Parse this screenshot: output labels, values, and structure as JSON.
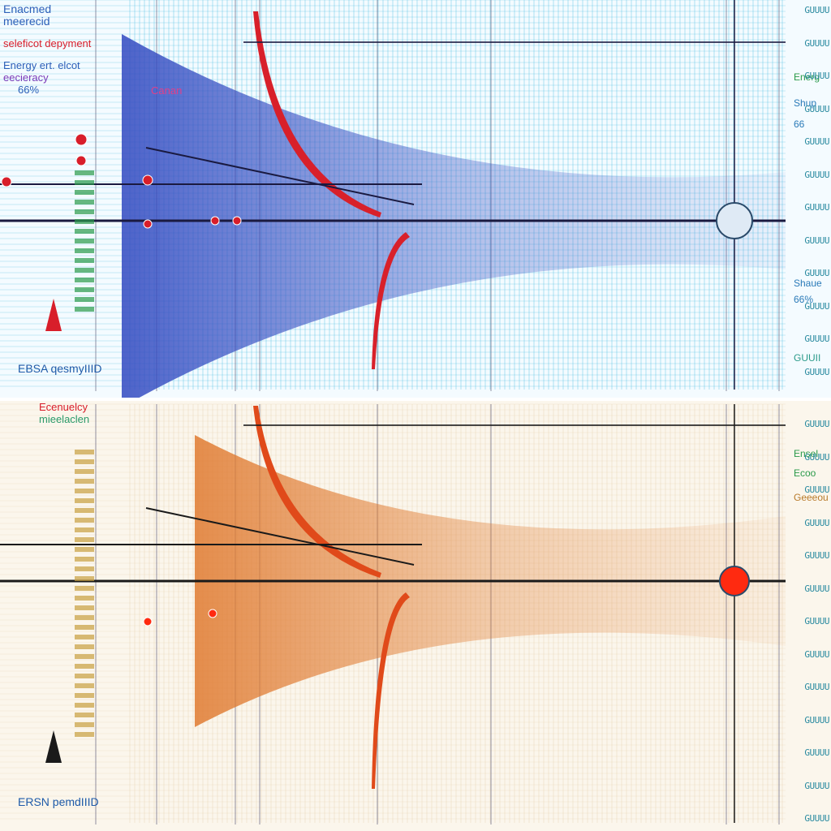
{
  "chart_data": [
    {
      "type": "line",
      "legend": {
        "lines": [
          "Enacmed",
          "meerecid",
          "seleficot depyment",
          "Energy ert. elcot",
          "eecieracy",
          "66%"
        ],
        "colors": [
          "#2c5fb8",
          "#2c5fb8",
          "#d81e2a",
          "#2c5fb8",
          "#7a3ab8",
          "#2c5fb8"
        ]
      },
      "annotation": "Canan",
      "footer_label": "EBSA qesmyIIID",
      "right_labels": [
        "Energ",
        "Shup",
        "66",
        "Shaue",
        "66%",
        "GUUII"
      ],
      "right_label_colors": [
        "#2a9a4a",
        "#2a7ab8",
        "#2a7ab8",
        "#2a7ab8",
        "#2a7ab8",
        "#2a9a8a"
      ],
      "tick_labels": [
        "GUUUU",
        "GUUUU",
        "GUUUU",
        "GUUUU",
        "GUUUU",
        "GUUUU",
        "GUUUU",
        "GUUUU",
        "GUUUU",
        "GUUUU",
        "GUUUU",
        "GUUUU"
      ],
      "colors": {
        "accent": "#d81e2a",
        "line": "#1a1a40",
        "fill": "#3048c0",
        "grid": "#1fb0d8"
      }
    },
    {
      "type": "line",
      "legend": {
        "lines": [
          "Ecenuelcy",
          "mieelaclen"
        ],
        "colors": [
          "#d81e2a",
          "#2a9a6a"
        ]
      },
      "footer_label": "ERSN pemdIIID",
      "right_labels": [
        "Ensel",
        "Ecoo",
        "Geeeou"
      ],
      "right_label_colors": [
        "#2a9a4a",
        "#2a9a4a",
        "#b87a2a"
      ],
      "tick_labels": [
        "GUUUU",
        "GUUUU",
        "GUUUU",
        "GUUUU",
        "GUUUU",
        "GUUUU",
        "GUUUU",
        "GUUUU",
        "GUUUU",
        "GUUUU",
        "GUUUU",
        "GUUUU",
        "GUUUU"
      ],
      "colors": {
        "accent": "#ff2a10",
        "line": "#1a1a1a",
        "fill": "#e07a30",
        "grid": "#e0c8a0"
      }
    }
  ]
}
